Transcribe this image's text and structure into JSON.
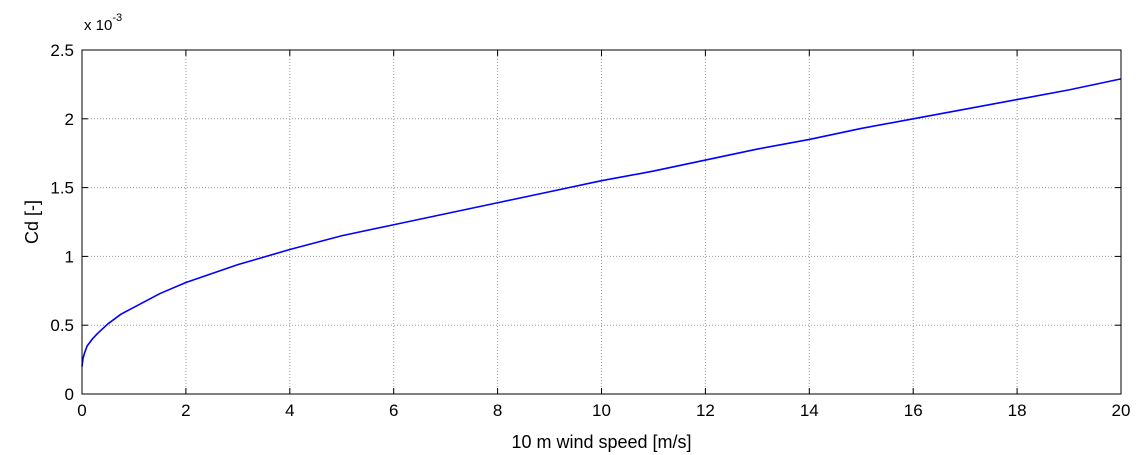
{
  "chart_data": {
    "type": "line",
    "xlabel": "10 m wind speed [m/s]",
    "ylabel": "Cd [-]",
    "y_multiplier": "x 10",
    "y_multiplier_exponent": "-3",
    "xlim": [
      0,
      20
    ],
    "ylim": [
      0,
      2.5
    ],
    "x_ticks": [
      0,
      2,
      4,
      6,
      8,
      10,
      12,
      14,
      16,
      18,
      20
    ],
    "y_ticks": [
      0,
      0.5,
      1,
      1.5,
      2,
      2.5
    ],
    "x_tick_labels": [
      "0",
      "2",
      "4",
      "6",
      "8",
      "10",
      "12",
      "14",
      "16",
      "18",
      "20"
    ],
    "y_tick_labels": [
      "0",
      "0.5",
      "1",
      "1.5",
      "2",
      "2.5"
    ],
    "grid": true,
    "series": [
      {
        "color": "#0000ff",
        "x": [
          0,
          0.02,
          0.05,
          0.1,
          0.2,
          0.3,
          0.5,
          0.75,
          1,
          1.5,
          2,
          3,
          4,
          5,
          6,
          7,
          8,
          9,
          10,
          11,
          12,
          13,
          14,
          15,
          16,
          17,
          18,
          19,
          20
        ],
        "y": [
          0.2,
          0.26,
          0.3,
          0.35,
          0.4,
          0.44,
          0.51,
          0.58,
          0.63,
          0.73,
          0.81,
          0.94,
          1.05,
          1.15,
          1.23,
          1.31,
          1.39,
          1.47,
          1.55,
          1.62,
          1.7,
          1.78,
          1.85,
          1.93,
          2.0,
          2.07,
          2.14,
          2.21,
          2.29
        ]
      }
    ]
  }
}
